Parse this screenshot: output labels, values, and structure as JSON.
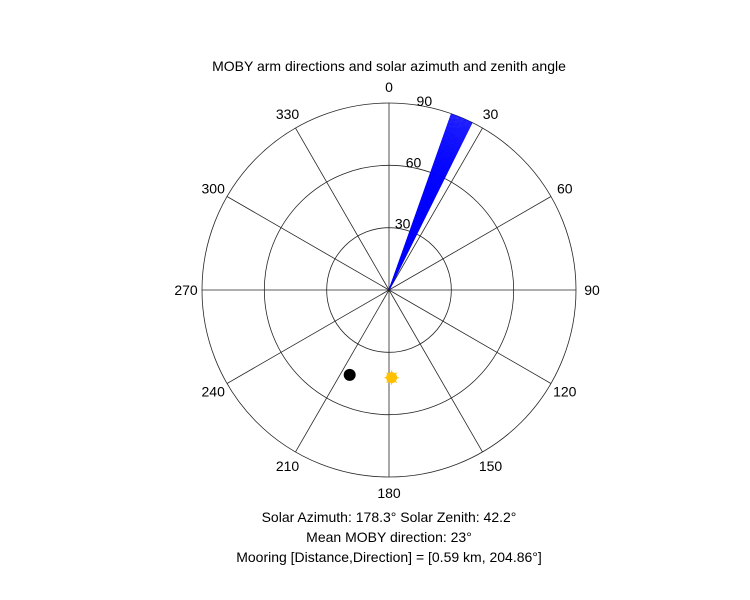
{
  "chart_data": {
    "type": "polar",
    "title": "MOBY arm directions and solar azimuth and zenith angle",
    "angular_axis": {
      "direction": "clockwise",
      "zero_location": "top",
      "ticks": [
        0,
        30,
        60,
        90,
        120,
        150,
        180,
        210,
        240,
        270,
        300,
        330
      ],
      "tick_labels": [
        "0",
        "30",
        "60",
        "90",
        "120",
        "150",
        "180",
        "210",
        "240",
        "270",
        "300",
        "330"
      ]
    },
    "radial_axis": {
      "range": [
        0,
        90
      ],
      "ticks": [
        30,
        60,
        90
      ],
      "tick_labels": [
        "30",
        "60",
        "90"
      ],
      "label_angle_deg": 10
    },
    "grid": true,
    "series": [
      {
        "kind": "arm_lines",
        "color": "#0000ff",
        "radius": 90,
        "directions_deg": [
          19.5,
          19.8,
          20.1,
          20.4,
          20.7,
          21.0,
          21.3,
          21.6,
          21.9,
          22.2,
          22.5,
          22.8,
          23.1,
          23.4,
          23.7,
          24.0,
          24.3,
          24.6,
          24.9,
          25.2,
          25.5,
          25.8,
          26.1,
          26.4
        ]
      },
      {
        "kind": "sun_marker",
        "color": "#ffc000",
        "azimuth_deg": 178.3,
        "zenith_deg": 42.2
      },
      {
        "kind": "mooring_marker",
        "color": "#000000",
        "direction_deg": 204.86,
        "radius": 45
      }
    ]
  },
  "annotations": {
    "line1": "Solar Azimuth: 178.3°    Solar Zenith: 42.2°",
    "line2": "Mean MOBY direction: 23°",
    "line3": "Mooring [Distance,Direction] = [0.59 km, 204.86°]"
  }
}
